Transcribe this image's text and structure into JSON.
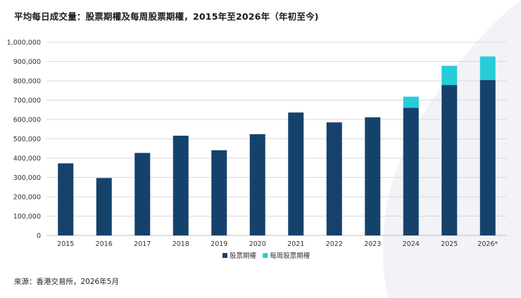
{
  "title": "平均每日成交量：股票期權及每周股票期權，2015年至2026年（年初至今)",
  "source": "來源：香港交易所，2026年5月",
  "colors": {
    "stock_options": "#15426b",
    "weekly_stock_options": "#26ccd8",
    "gridline": "#d9d9d9",
    "background_curve": "#f2f3f6"
  },
  "chart_data": {
    "type": "bar",
    "stacked": true,
    "title": "平均每日成交量：股票期權及每周股票期權，2015年至2026年（年初至今)",
    "xlabel": "",
    "ylabel": "",
    "categories": [
      "2015",
      "2016",
      "2017",
      "2018",
      "2019",
      "2020",
      "2021",
      "2022",
      "2023",
      "2024",
      "2025",
      "2026*"
    ],
    "series": [
      {
        "name": "股票期權",
        "values": [
          373000,
          297000,
          427000,
          516000,
          441000,
          524000,
          636000,
          585000,
          611000,
          660000,
          778000,
          804000
        ]
      },
      {
        "name": "每周股票期權",
        "values": [
          0,
          0,
          0,
          0,
          0,
          0,
          0,
          0,
          0,
          58000,
          100000,
          122000
        ]
      }
    ],
    "ylim": [
      0,
      1000000
    ],
    "yticks": [
      "0",
      "100,000",
      "200,000",
      "300,000",
      "400,000",
      "500,000",
      "600,000",
      "700,000",
      "800,000",
      "900,000",
      "1,000,000"
    ],
    "grid": true,
    "legend": "bottom-center"
  }
}
